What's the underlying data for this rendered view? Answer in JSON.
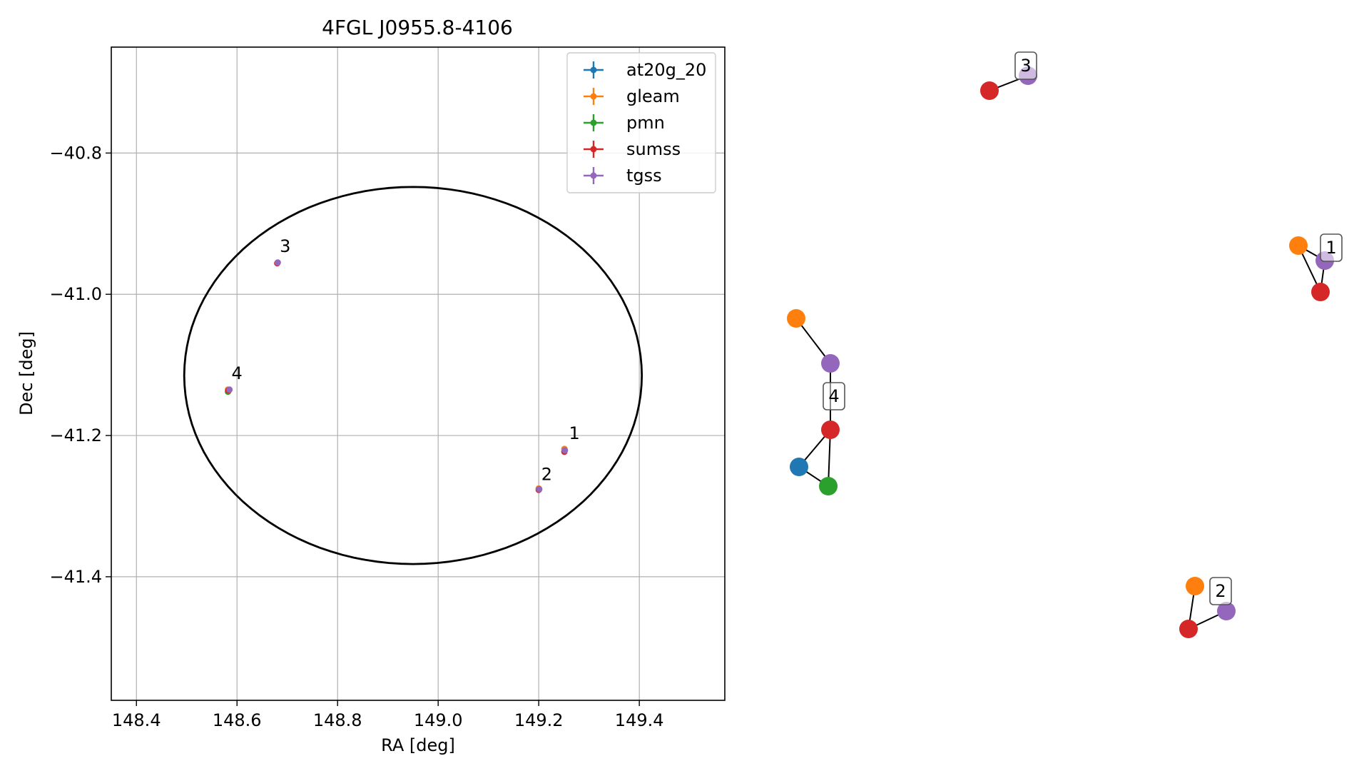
{
  "chart_data": [
    {
      "type": "scatter",
      "title": "4FGL J0955.8-4106",
      "xlabel": "RA [deg]",
      "ylabel": "Dec [deg]",
      "xlim": [
        148.35,
        149.57
      ],
      "ylim": [
        -41.575,
        -40.65
      ],
      "xticks": [
        148.4,
        148.6,
        148.8,
        149.0,
        149.2,
        149.4
      ],
      "xtick_labels": [
        "148.4",
        "148.6",
        "148.8",
        "149.0",
        "149.2",
        "149.4"
      ],
      "yticks": [
        -40.8,
        -41.0,
        -41.2,
        -41.4
      ],
      "ytick_labels": [
        "−40.8",
        "−41.0",
        "−41.2",
        "−41.4"
      ],
      "grid": true,
      "legend_position": "top-right",
      "ellipse": {
        "center_ra": 148.95,
        "center_dec": -41.115,
        "semi_ra": 0.455,
        "semi_dec": 0.267,
        "color": "#000000"
      },
      "series": [
        {
          "name": "at20g_20",
          "color": "#1f77b4",
          "points": [
            {
              "ra": 148.583,
              "dec": -41.137
            }
          ]
        },
        {
          "name": "gleam",
          "color": "#ff7f0e",
          "points": [
            {
              "ra": 149.251,
              "dec": -41.219
            },
            {
              "ra": 148.582,
              "dec": -41.135
            },
            {
              "ra": 149.2,
              "dec": -41.275
            }
          ]
        },
        {
          "name": "pmn",
          "color": "#2ca02c",
          "points": [
            {
              "ra": 148.582,
              "dec": -41.138
            }
          ]
        },
        {
          "name": "sumss",
          "color": "#d62728",
          "points": [
            {
              "ra": 149.251,
              "dec": -41.223
            },
            {
              "ra": 148.583,
              "dec": -41.136
            },
            {
              "ra": 149.2,
              "dec": -41.277
            },
            {
              "ra": 148.68,
              "dec": -40.956
            }
          ]
        },
        {
          "name": "tgss",
          "color": "#9467bd",
          "points": [
            {
              "ra": 149.252,
              "dec": -41.221
            },
            {
              "ra": 148.585,
              "dec": -41.135
            },
            {
              "ra": 149.201,
              "dec": -41.276
            },
            {
              "ra": 148.681,
              "dec": -40.955
            }
          ]
        }
      ],
      "annotations": [
        {
          "text": "1",
          "ra": 149.26,
          "dec": -41.205
        },
        {
          "text": "2",
          "ra": 149.205,
          "dec": -41.263
        },
        {
          "text": "3",
          "ra": 148.685,
          "dec": -40.94
        },
        {
          "text": "4",
          "ra": 148.589,
          "dec": -41.12
        }
      ]
    },
    {
      "type": "network",
      "groups": [
        {
          "label": "1",
          "nodes": [
            {
              "series": "gleam",
              "color": "#ff7f0e"
            },
            {
              "series": "tgss",
              "color": "#9467bd"
            },
            {
              "series": "sumss",
              "color": "#d62728"
            }
          ],
          "edges": [
            [
              0,
              1
            ],
            [
              0,
              2
            ],
            [
              1,
              2
            ]
          ]
        },
        {
          "label": "2",
          "nodes": [
            {
              "series": "gleam",
              "color": "#ff7f0e"
            },
            {
              "series": "tgss",
              "color": "#9467bd"
            },
            {
              "series": "sumss",
              "color": "#d62728"
            }
          ],
          "edges": [
            [
              0,
              2
            ],
            [
              1,
              2
            ]
          ]
        },
        {
          "label": "3",
          "nodes": [
            {
              "series": "sumss",
              "color": "#d62728"
            },
            {
              "series": "tgss",
              "color": "#9467bd"
            }
          ],
          "edges": [
            [
              0,
              1
            ]
          ]
        },
        {
          "label": "4",
          "nodes": [
            {
              "series": "gleam",
              "color": "#ff7f0e"
            },
            {
              "series": "tgss",
              "color": "#9467bd"
            },
            {
              "series": "sumss",
              "color": "#d62728"
            },
            {
              "series": "at20g_20",
              "color": "#1f77b4"
            },
            {
              "series": "pmn",
              "color": "#2ca02c"
            }
          ],
          "edges": [
            [
              0,
              1
            ],
            [
              1,
              2
            ],
            [
              2,
              3
            ],
            [
              2,
              4
            ],
            [
              3,
              4
            ]
          ]
        }
      ]
    }
  ]
}
